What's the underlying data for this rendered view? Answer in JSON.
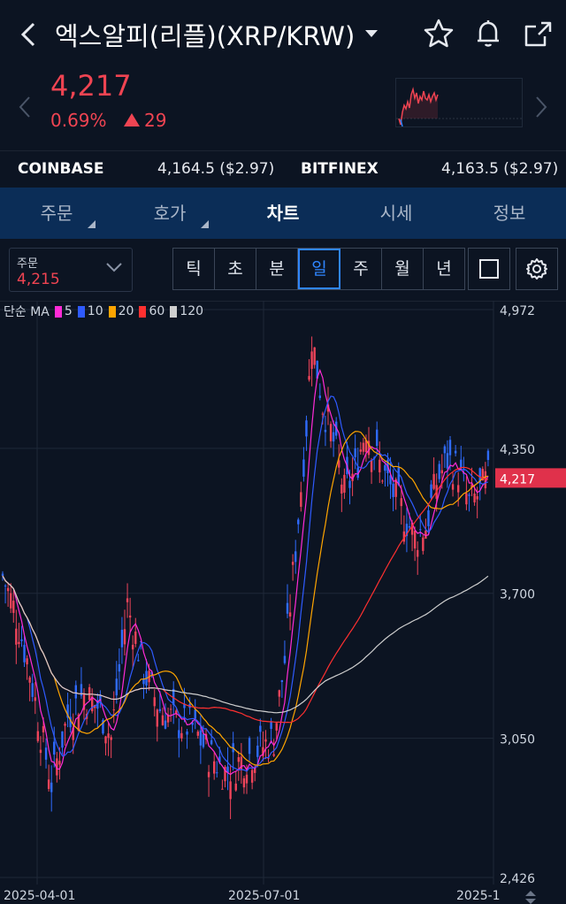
{
  "header": {
    "title": "엑스알피(리플)(XRP/KRW)",
    "icons": [
      "back-arrow-icon",
      "dropdown-caret-icon",
      "star-icon",
      "bell-icon",
      "share-icon"
    ]
  },
  "ticker": {
    "price": "4,217",
    "change_pct": "0.69%",
    "change_abs": "29",
    "color_up": "#f04452"
  },
  "exchanges": [
    {
      "name": "COINBASE",
      "value": "4,164.5 ($2.97)"
    },
    {
      "name": "BITFINEX",
      "value": "4,163.5 ($2.97)"
    }
  ],
  "tabs": [
    {
      "label": "주문",
      "active": false
    },
    {
      "label": "호가",
      "active": false
    },
    {
      "label": "차트",
      "active": true
    },
    {
      "label": "시세",
      "active": false
    },
    {
      "label": "정보",
      "active": false
    }
  ],
  "toolbar": {
    "order_label": "주문",
    "order_value": "4,215",
    "periods": [
      "틱",
      "초",
      "분",
      "일",
      "주",
      "월",
      "년"
    ],
    "selected_period": "일"
  },
  "legend": {
    "label": "단순 MA",
    "items": [
      {
        "period": "5",
        "color": "#ff2bd6"
      },
      {
        "period": "10",
        "color": "#2f5bff"
      },
      {
        "period": "20",
        "color": "#ffa500"
      },
      {
        "period": "60",
        "color": "#ff3030"
      },
      {
        "period": "120",
        "color": "#cfcfcf"
      }
    ]
  },
  "chart_data": {
    "type": "candlestick",
    "y_ticks": [
      "4,972",
      "4,350",
      "3,700",
      "3,050",
      "2,426"
    ],
    "x_ticks": [
      "2025-04-01",
      "2025-07-01",
      "2025-1"
    ],
    "current_price_label": "4,217",
    "ylim": [
      2426,
      4972
    ],
    "grid": true
  }
}
